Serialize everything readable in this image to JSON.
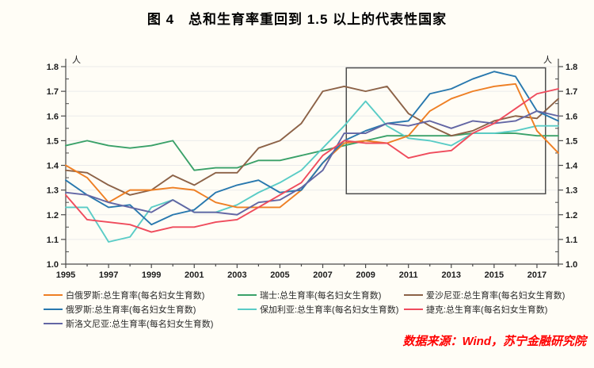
{
  "title": "图 4　总和生育率重回到 1.5 以上的代表性国家",
  "source_note": "数据来源：Wind，苏宁金融研究院",
  "chart_data": {
    "type": "line",
    "title": "图 4　总和生育率重回到 1.5 以上的代表性国家",
    "unit_label": "人",
    "x": [
      1995,
      1996,
      1997,
      1998,
      1999,
      2000,
      2001,
      2002,
      2003,
      2004,
      2005,
      2006,
      2007,
      2008,
      2009,
      2010,
      2011,
      2012,
      2013,
      2014,
      2015,
      2016,
      2017,
      2018
    ],
    "x_tick_labels": [
      "1995",
      "1997",
      "1999",
      "2001",
      "2003",
      "2005",
      "2007",
      "2009",
      "2011",
      "2013",
      "2015",
      "2017"
    ],
    "ylim": [
      1.0,
      1.8
    ],
    "y_tick_labels": [
      "1.0",
      "1.1",
      "1.2",
      "1.3",
      "1.4",
      "1.5",
      "1.6",
      "1.7",
      "1.8"
    ],
    "grid": "horizontal-light",
    "legend_position": "bottom-left-3-columns",
    "axis_color": "#4a4a4a",
    "grid_color": "#ebebeb",
    "highlight_box": {
      "year_start": 2008.1,
      "year_end": 2017.4,
      "value_min": 1.285,
      "value_max": 1.795,
      "border_color": "#4d4d4d"
    },
    "series": [
      {
        "name": "白俄罗斯:总生育率(每名妇女生育数)",
        "country": "白俄罗斯",
        "color": "#ee7f24",
        "values": [
          1.4,
          1.35,
          1.25,
          1.3,
          1.3,
          1.31,
          1.3,
          1.25,
          1.23,
          1.23,
          1.23,
          1.3,
          1.41,
          1.49,
          1.5,
          1.49,
          1.52,
          1.62,
          1.67,
          1.7,
          1.72,
          1.73,
          1.54,
          1.45
        ]
      },
      {
        "name": "瑞士:总生育率(每名妇女生育数)",
        "country": "瑞士",
        "color": "#3aa169",
        "values": [
          1.48,
          1.5,
          1.48,
          1.47,
          1.48,
          1.5,
          1.38,
          1.39,
          1.39,
          1.42,
          1.42,
          1.44,
          1.46,
          1.48,
          1.5,
          1.52,
          1.52,
          1.52,
          1.52,
          1.53,
          1.53,
          1.53,
          1.52,
          1.52
        ]
      },
      {
        "name": "爱沙尼亚:总生育率(每名妇女生育数)",
        "country": "爱沙尼亚",
        "color": "#8c6247",
        "values": [
          1.38,
          1.37,
          1.32,
          1.28,
          1.3,
          1.36,
          1.32,
          1.37,
          1.37,
          1.47,
          1.5,
          1.57,
          1.7,
          1.72,
          1.7,
          1.72,
          1.61,
          1.56,
          1.52,
          1.54,
          1.58,
          1.6,
          1.59,
          1.67
        ]
      },
      {
        "name": "俄罗斯:总生育率(每名妇女生育数)",
        "country": "俄罗斯",
        "color": "#2878ae",
        "values": [
          1.34,
          1.28,
          1.23,
          1.24,
          1.16,
          1.2,
          1.22,
          1.29,
          1.32,
          1.34,
          1.29,
          1.3,
          1.41,
          1.5,
          1.54,
          1.57,
          1.58,
          1.69,
          1.71,
          1.75,
          1.78,
          1.76,
          1.62,
          1.58
        ]
      },
      {
        "name": "保加利亚:总生育率(每名妇女生育数)",
        "country": "保加利亚",
        "color": "#5accc6",
        "values": [
          1.23,
          1.23,
          1.09,
          1.11,
          1.23,
          1.26,
          1.21,
          1.21,
          1.24,
          1.29,
          1.33,
          1.38,
          1.47,
          1.56,
          1.66,
          1.56,
          1.51,
          1.5,
          1.48,
          1.53,
          1.53,
          1.54,
          1.56,
          1.56
        ]
      },
      {
        "name": "捷克:总生育率(每名妇女生育数)",
        "country": "捷克",
        "color": "#ef4b5c",
        "values": [
          1.28,
          1.18,
          1.17,
          1.16,
          1.13,
          1.15,
          1.15,
          1.17,
          1.18,
          1.23,
          1.28,
          1.33,
          1.44,
          1.5,
          1.49,
          1.49,
          1.43,
          1.45,
          1.46,
          1.53,
          1.57,
          1.63,
          1.69,
          1.71
        ]
      },
      {
        "name": "斯洛文尼亚:总生育率(每名妇女生育数)",
        "country": "斯洛文尼亚",
        "color": "#6366a4",
        "values": [
          1.29,
          1.28,
          1.25,
          1.23,
          1.21,
          1.26,
          1.21,
          1.21,
          1.2,
          1.25,
          1.26,
          1.31,
          1.38,
          1.53,
          1.53,
          1.57,
          1.56,
          1.58,
          1.55,
          1.58,
          1.57,
          1.58,
          1.62,
          1.6
        ]
      }
    ],
    "draw_order": [
      1,
      4,
      2,
      0,
      3,
      6,
      5
    ]
  }
}
